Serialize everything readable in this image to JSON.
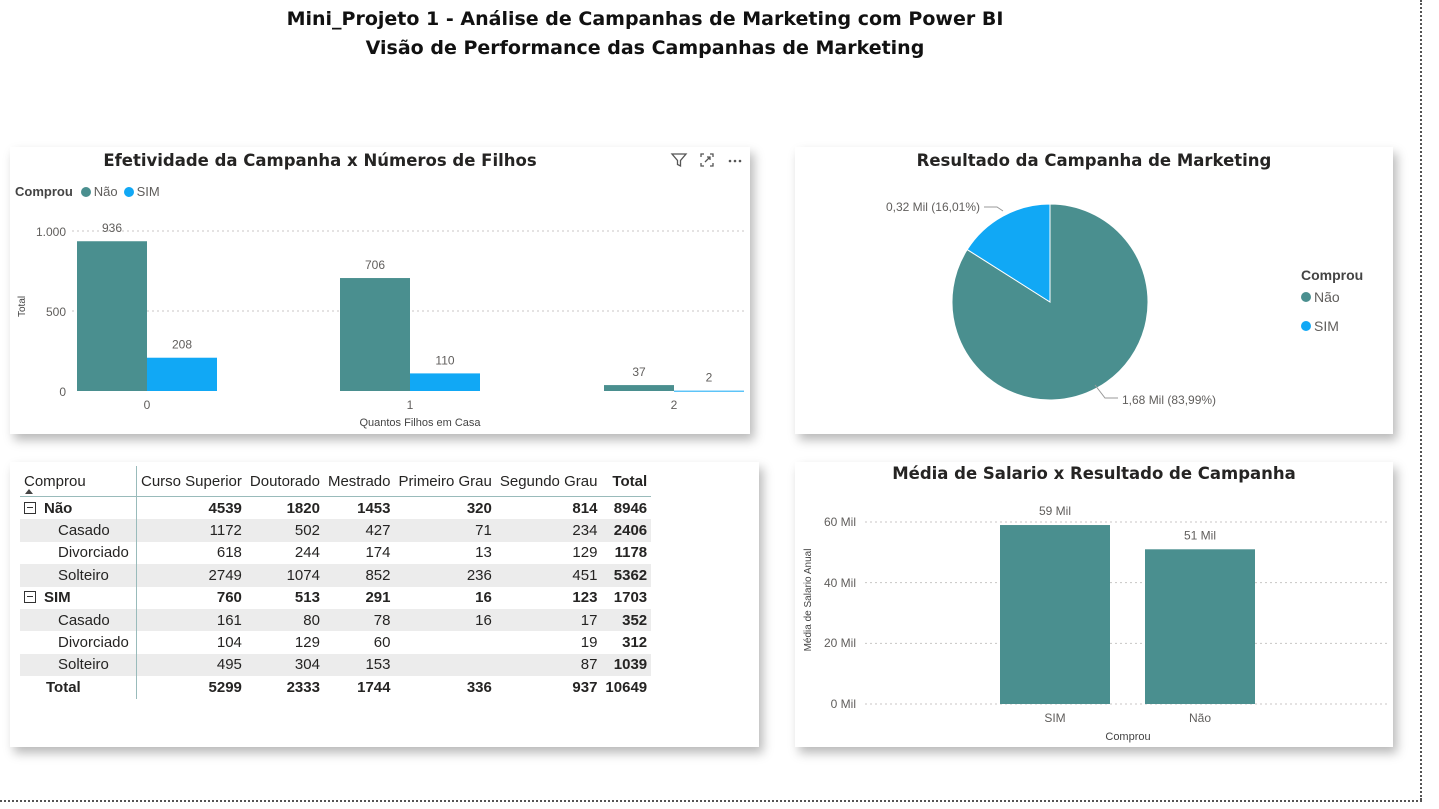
{
  "header": {
    "title": "Mini_Projeto 1 - Análise de Campanhas de Marketing com Power BI",
    "subtitle": "Visão de Performance das Campanhas de Marketing"
  },
  "colors": {
    "nao": "#4a8f8f",
    "sim": "#11a8f5"
  },
  "icons": [
    "filter-icon",
    "focus-mode-icon",
    "more-options-icon"
  ],
  "bar_chart": {
    "title": "Efetividade da Campanha x Números de Filhos",
    "legend_title": "Comprou",
    "legend_items": [
      "Não",
      "SIM"
    ],
    "ylabel": "Total",
    "xlabel": "Quantos Filhos em Casa",
    "yticks": [
      "1.000",
      "500",
      "0"
    ]
  },
  "pie_chart": {
    "title": "Resultado da Campanha de Marketing",
    "legend_title": "Comprou",
    "legend_items": [
      "Não",
      "SIM"
    ],
    "labels": [
      "1,68 Mil (83,99%)",
      "0,32 Mil (16,01%)"
    ]
  },
  "salary_chart": {
    "title": "Média de Salario x Resultado de Campanha",
    "ylabel": "Média de Salario Anual",
    "xlabel": "Comprou",
    "yticks": [
      "60 Mil",
      "40 Mil",
      "20 Mil",
      "0 Mil"
    ],
    "data_labels": [
      "59 Mil",
      "51 Mil"
    ]
  },
  "matrix": {
    "columns": [
      "Comprou",
      "Curso Superior",
      "Doutorado",
      "Mestrado",
      "Primeiro Grau",
      "Segundo Grau",
      "Total"
    ],
    "rows": [
      {
        "label": "Não",
        "values": [
          "4539",
          "1820",
          "1453",
          "320",
          "814",
          "8946"
        ],
        "group": true
      },
      {
        "label": "Casado",
        "values": [
          "1172",
          "502",
          "427",
          "71",
          "234",
          "2406"
        ]
      },
      {
        "label": "Divorciado",
        "values": [
          "618",
          "244",
          "174",
          "13",
          "129",
          "1178"
        ]
      },
      {
        "label": "Solteiro",
        "values": [
          "2749",
          "1074",
          "852",
          "236",
          "451",
          "5362"
        ]
      },
      {
        "label": "SIM",
        "values": [
          "760",
          "513",
          "291",
          "16",
          "123",
          "1703"
        ],
        "group": true
      },
      {
        "label": "Casado",
        "values": [
          "161",
          "80",
          "78",
          "16",
          "17",
          "352"
        ]
      },
      {
        "label": "Divorciado",
        "values": [
          "104",
          "129",
          "60",
          "",
          "19",
          "312"
        ]
      },
      {
        "label": "Solteiro",
        "values": [
          "495",
          "304",
          "153",
          "",
          "87",
          "1039"
        ]
      },
      {
        "label": "Total",
        "values": [
          "5299",
          "2333",
          "1744",
          "336",
          "937",
          "10649"
        ],
        "total": true
      }
    ]
  },
  "chart_data": [
    {
      "type": "bar",
      "title": "Efetividade da Campanha x Números de Filhos",
      "xlabel": "Quantos Filhos em Casa",
      "ylabel": "Total",
      "categories": [
        "0",
        "1",
        "2"
      ],
      "series": [
        {
          "name": "Não",
          "values": [
            936,
            706,
            37
          ]
        },
        {
          "name": "SIM",
          "values": [
            208,
            110,
            2
          ]
        }
      ],
      "ylim": [
        0,
        1000
      ],
      "grid": true,
      "legend": "top-left"
    },
    {
      "type": "pie",
      "title": "Resultado da Campanha de Marketing",
      "categories": [
        "Não",
        "SIM"
      ],
      "values": [
        1.68,
        0.32
      ],
      "percentages": [
        83.99,
        16.01
      ],
      "legend": "right"
    },
    {
      "type": "bar",
      "title": "Média de Salario x Resultado de Campanha",
      "xlabel": "Comprou",
      "ylabel": "Média de Salario Anual",
      "categories": [
        "SIM",
        "Não"
      ],
      "values": [
        59,
        51
      ],
      "unit": "Mil",
      "ylim": [
        0,
        60
      ],
      "grid": true
    }
  ]
}
